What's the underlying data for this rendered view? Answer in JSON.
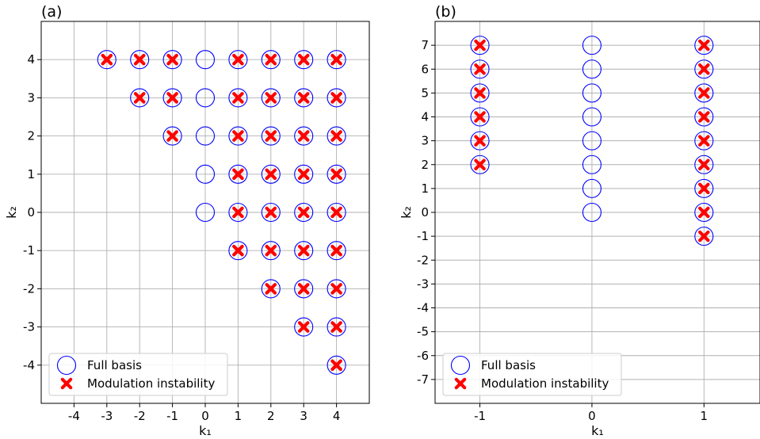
{
  "chart_data": [
    {
      "panel_label": "(a)",
      "type": "scatter",
      "xlabel": "k₁",
      "ylabel": "k₂",
      "xlim": [
        -5,
        5
      ],
      "ylim": [
        -5,
        5
      ],
      "xticks": [
        -4,
        -3,
        -2,
        -1,
        0,
        1,
        2,
        3,
        4
      ],
      "yticks": [
        -4,
        -3,
        -2,
        -1,
        0,
        1,
        2,
        3,
        4
      ],
      "grid": true,
      "legend_position": "lower-left",
      "series": [
        {
          "name": "Full basis",
          "marker": "open-circle",
          "color": "#0000ff",
          "points": [
            [
              -3,
              4
            ],
            [
              -2,
              4
            ],
            [
              -1,
              4
            ],
            [
              0,
              4
            ],
            [
              1,
              4
            ],
            [
              2,
              4
            ],
            [
              3,
              4
            ],
            [
              4,
              4
            ],
            [
              -2,
              3
            ],
            [
              -1,
              3
            ],
            [
              0,
              3
            ],
            [
              1,
              3
            ],
            [
              2,
              3
            ],
            [
              3,
              3
            ],
            [
              4,
              3
            ],
            [
              -1,
              2
            ],
            [
              0,
              2
            ],
            [
              1,
              2
            ],
            [
              2,
              2
            ],
            [
              3,
              2
            ],
            [
              4,
              2
            ],
            [
              0,
              1
            ],
            [
              1,
              1
            ],
            [
              2,
              1
            ],
            [
              3,
              1
            ],
            [
              4,
              1
            ],
            [
              0,
              0
            ],
            [
              1,
              0
            ],
            [
              2,
              0
            ],
            [
              3,
              0
            ],
            [
              4,
              0
            ],
            [
              1,
              -1
            ],
            [
              2,
              -1
            ],
            [
              3,
              -1
            ],
            [
              4,
              -1
            ],
            [
              2,
              -2
            ],
            [
              3,
              -2
            ],
            [
              4,
              -2
            ],
            [
              3,
              -3
            ],
            [
              4,
              -3
            ],
            [
              4,
              -4
            ]
          ]
        },
        {
          "name": "Modulation instability",
          "marker": "x",
          "color": "#ff0000",
          "points": [
            [
              -3,
              4
            ],
            [
              -2,
              4
            ],
            [
              -1,
              4
            ],
            [
              1,
              4
            ],
            [
              2,
              4
            ],
            [
              3,
              4
            ],
            [
              4,
              4
            ],
            [
              -2,
              3
            ],
            [
              -1,
              3
            ],
            [
              1,
              3
            ],
            [
              2,
              3
            ],
            [
              3,
              3
            ],
            [
              4,
              3
            ],
            [
              -1,
              2
            ],
            [
              1,
              2
            ],
            [
              2,
              2
            ],
            [
              3,
              2
            ],
            [
              4,
              2
            ],
            [
              1,
              1
            ],
            [
              2,
              1
            ],
            [
              3,
              1
            ],
            [
              4,
              1
            ],
            [
              1,
              0
            ],
            [
              2,
              0
            ],
            [
              3,
              0
            ],
            [
              4,
              0
            ],
            [
              1,
              -1
            ],
            [
              2,
              -1
            ],
            [
              3,
              -1
            ],
            [
              4,
              -1
            ],
            [
              2,
              -2
            ],
            [
              3,
              -2
            ],
            [
              4,
              -2
            ],
            [
              3,
              -3
            ],
            [
              4,
              -3
            ],
            [
              4,
              -4
            ]
          ]
        }
      ]
    },
    {
      "panel_label": "(b)",
      "type": "scatter",
      "xlabel": "k₁",
      "ylabel": "k₂",
      "xlim": [
        -1.4,
        1.5
      ],
      "ylim": [
        -8,
        8
      ],
      "xticks": [
        -1,
        0,
        1
      ],
      "yticks": [
        -7,
        -6,
        -5,
        -4,
        -3,
        -2,
        -1,
        0,
        1,
        2,
        3,
        4,
        5,
        6,
        7
      ],
      "grid": true,
      "legend_position": "lower-left",
      "series": [
        {
          "name": "Full basis",
          "marker": "open-circle",
          "color": "#0000ff",
          "points": [
            [
              -1,
              2
            ],
            [
              -1,
              3
            ],
            [
              -1,
              4
            ],
            [
              -1,
              5
            ],
            [
              -1,
              6
            ],
            [
              -1,
              7
            ],
            [
              0,
              0
            ],
            [
              0,
              1
            ],
            [
              0,
              2
            ],
            [
              0,
              3
            ],
            [
              0,
              4
            ],
            [
              0,
              5
            ],
            [
              0,
              6
            ],
            [
              0,
              7
            ],
            [
              1,
              -1
            ],
            [
              1,
              0
            ],
            [
              1,
              1
            ],
            [
              1,
              2
            ],
            [
              1,
              3
            ],
            [
              1,
              4
            ],
            [
              1,
              5
            ],
            [
              1,
              6
            ],
            [
              1,
              7
            ]
          ]
        },
        {
          "name": "Modulation instability",
          "marker": "x",
          "color": "#ff0000",
          "points": [
            [
              -1,
              2
            ],
            [
              -1,
              3
            ],
            [
              -1,
              4
            ],
            [
              -1,
              5
            ],
            [
              -1,
              6
            ],
            [
              -1,
              7
            ],
            [
              1,
              -1
            ],
            [
              1,
              0
            ],
            [
              1,
              1
            ],
            [
              1,
              2
            ],
            [
              1,
              3
            ],
            [
              1,
              4
            ],
            [
              1,
              5
            ],
            [
              1,
              6
            ],
            [
              1,
              7
            ]
          ]
        }
      ]
    }
  ]
}
